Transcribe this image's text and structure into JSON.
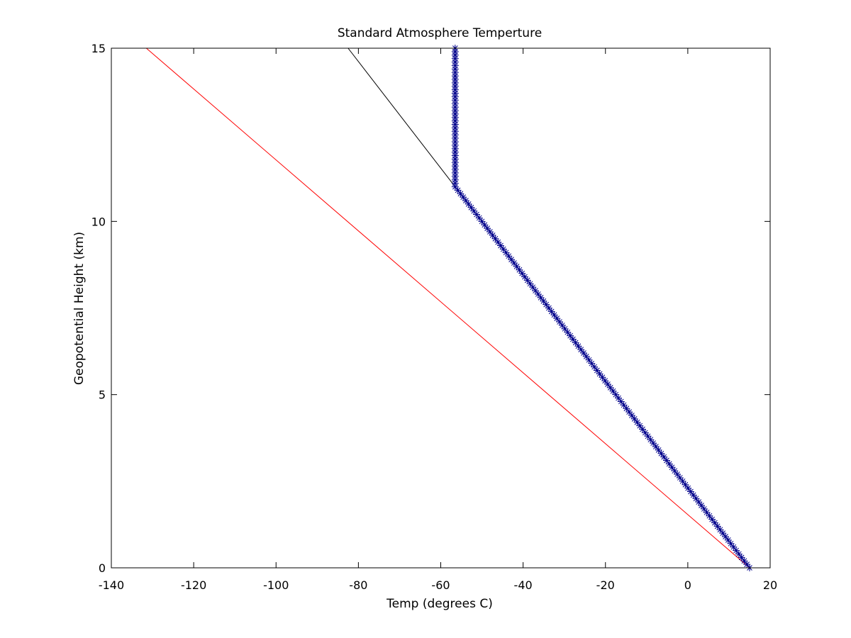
{
  "chart_data": {
    "type": "line",
    "title": "Standard Atmosphere Temperture",
    "xlabel": "Temp (degrees C)",
    "ylabel": "Geopotential Height (km)",
    "xlim": [
      -140,
      20
    ],
    "ylim": [
      0,
      15
    ],
    "xticks": [
      -140,
      -120,
      -100,
      -80,
      -60,
      -40,
      -20,
      0,
      20
    ],
    "yticks": [
      0,
      5,
      10,
      15
    ],
    "grid": false,
    "series": [
      {
        "color": "#ff0000",
        "style": "line",
        "x": [
          15,
          -131.5
        ],
        "y": [
          0,
          15
        ]
      },
      {
        "color": "#000000",
        "style": "line",
        "x": [
          15,
          -82.5
        ],
        "y": [
          0,
          15
        ]
      },
      {
        "color": "#00008b",
        "style": "line-with-asterisk-markers",
        "marker_spacing_km": 0.1,
        "x": [
          15,
          -56.5,
          -56.5
        ],
        "y": [
          0,
          11,
          15
        ]
      }
    ]
  }
}
